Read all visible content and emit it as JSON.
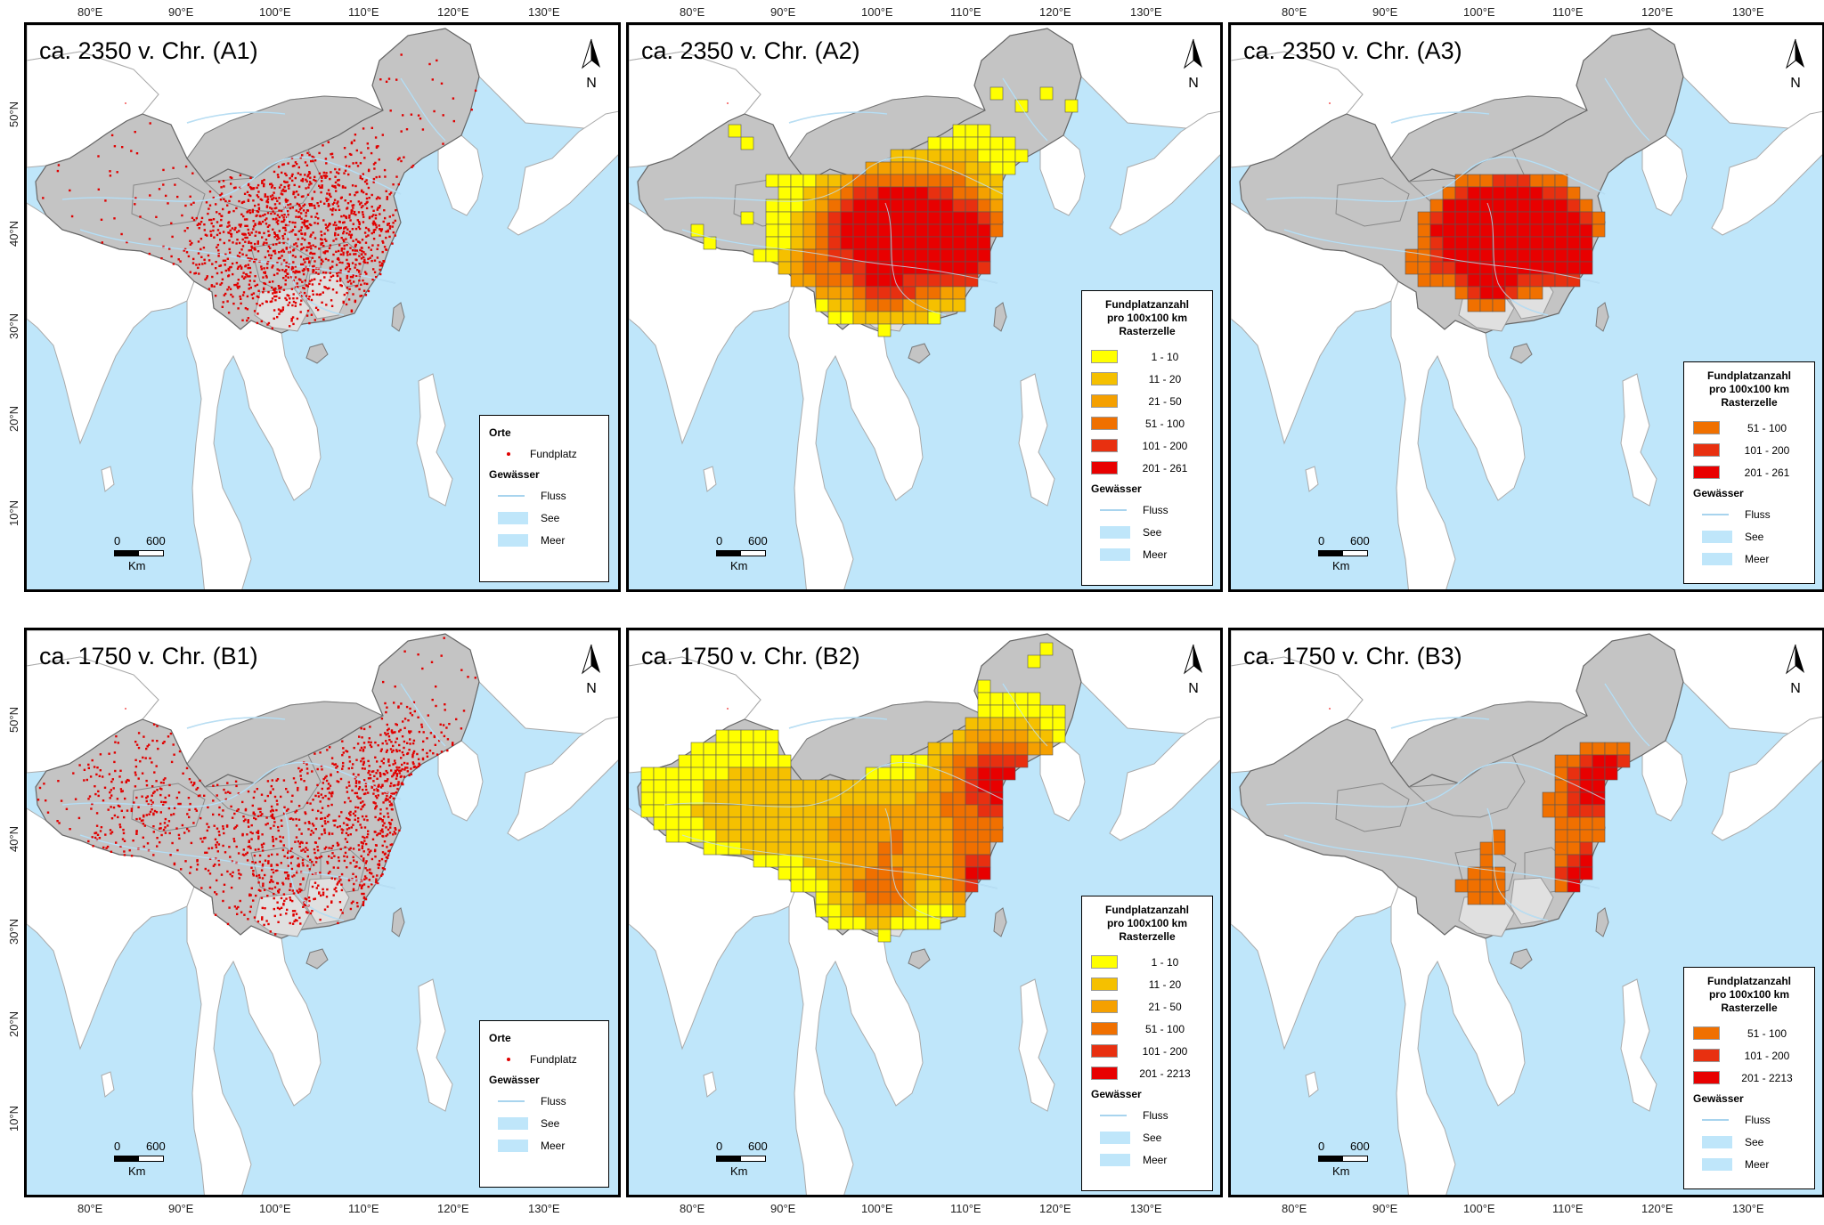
{
  "lon_labels": [
    "80°E",
    "90°E",
    "100°E",
    "110°E",
    "120°E",
    "130°E"
  ],
  "lat_labels": [
    "50°N",
    "40°N",
    "30°N",
    "20°N",
    "10°N"
  ],
  "north_label": "N",
  "scale": {
    "zero": "0",
    "max": "600",
    "unit": "Km"
  },
  "legend_points": {
    "orte": "Orte",
    "fundplatz": "Fundplatz",
    "gewaesser": "Gewässer",
    "fluss": "Fluss",
    "see": "See",
    "meer": "Meer"
  },
  "legend_grid_title": [
    "Fundplatzanzahl",
    "pro 100x100 km",
    "Rasterzelle"
  ],
  "colors": {
    "c1": "#ffff00",
    "c2": "#f5c000",
    "c3": "#f5a000",
    "c4": "#f07000",
    "c5": "#e83010",
    "c6": "#e80000",
    "land": "#c4c4c4",
    "outside": "#ffffff",
    "sea": "#bfe6fa",
    "point": "#e00000"
  },
  "panels": [
    {
      "id": "A1",
      "title": "ca. 2350 v. Chr. (A1)",
      "type": "points"
    },
    {
      "id": "A2",
      "title": "ca. 2350 v. Chr. (A2)",
      "type": "grid",
      "classes": [
        "1 - 10",
        "11 - 20",
        "21 - 50",
        "51 - 100",
        "101 - 200",
        "201 - 261"
      ]
    },
    {
      "id": "A3",
      "title": "ca. 2350 v. Chr. (A3)",
      "type": "grid",
      "classes": [
        "51 - 100",
        "101 - 200",
        "201 - 261"
      ]
    },
    {
      "id": "B1",
      "title": "ca. 1750 v. Chr. (B1)",
      "type": "points"
    },
    {
      "id": "B2",
      "title": "ca. 1750 v. Chr. (B2)",
      "type": "grid",
      "classes": [
        "1 - 10",
        "11 - 20",
        "21 - 50",
        "51 - 100",
        "101 - 200",
        "201 - 2213"
      ]
    },
    {
      "id": "B3",
      "title": "ca. 1750 v. Chr. (B3)",
      "type": "grid",
      "classes": [
        "51 - 100",
        "101 - 200",
        "201 - 2213"
      ]
    }
  ]
}
